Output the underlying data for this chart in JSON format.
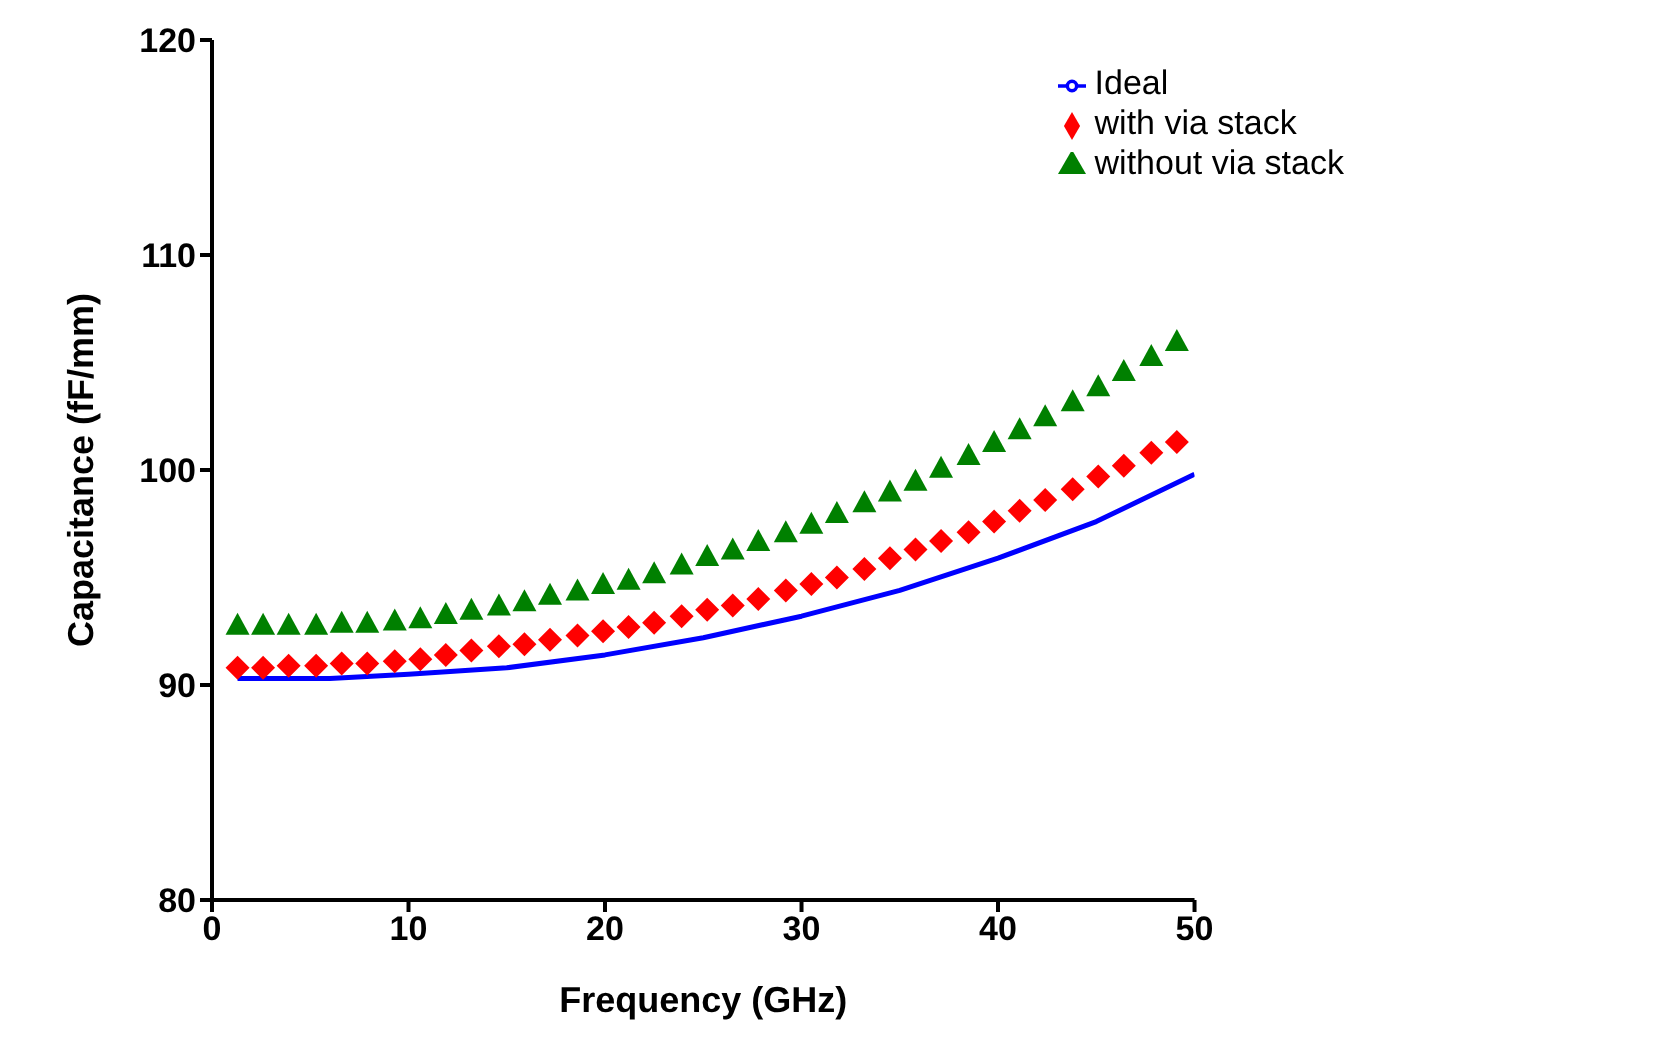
{
  "chart_data": {
    "type": "scatter",
    "xlabel": "Frequency (GHz)",
    "ylabel": "Capacitance (fF/mm)",
    "xlim": [
      0,
      50
    ],
    "xticks": [
      0,
      10,
      20,
      30,
      40,
      50
    ],
    "ylim": [
      80,
      120
    ],
    "yticks": [
      80,
      90,
      100,
      110,
      120
    ],
    "grid": false,
    "legend": "top right",
    "x": [
      1.3,
      2.6,
      3.9,
      5.3,
      6.6,
      7.9,
      9.3,
      10.6,
      11.9,
      13.2,
      14.6,
      15.9,
      17.2,
      18.6,
      19.9,
      21.2,
      22.5,
      23.9,
      25.2,
      26.5,
      27.8,
      29.2,
      30.5,
      31.8,
      33.2,
      34.5,
      35.8,
      37.1,
      38.5,
      39.8,
      41.1,
      42.4,
      43.8,
      45.1,
      46.4,
      47.8,
      49.1
    ],
    "series": [
      {
        "name": "with via stack",
        "color": "#ff0000",
        "marker": "diamond",
        "values": [
          90.8,
          90.8,
          90.9,
          90.9,
          91.0,
          91.0,
          91.1,
          91.2,
          91.4,
          91.6,
          91.8,
          91.9,
          92.1,
          92.3,
          92.5,
          92.7,
          92.9,
          93.2,
          93.5,
          93.7,
          94.0,
          94.4,
          94.7,
          95.0,
          95.4,
          95.9,
          96.3,
          96.7,
          97.1,
          97.6,
          98.1,
          98.6,
          99.1,
          99.7,
          100.2,
          100.8,
          101.3
        ]
      },
      {
        "name": "without via stack",
        "color": "#008000",
        "marker": "triangle",
        "values": [
          92.8,
          92.8,
          92.8,
          92.8,
          92.9,
          92.9,
          93.0,
          93.1,
          93.3,
          93.5,
          93.7,
          93.9,
          94.2,
          94.4,
          94.7,
          94.9,
          95.2,
          95.6,
          96.0,
          96.3,
          96.7,
          97.1,
          97.5,
          98.0,
          98.5,
          99.0,
          99.5,
          100.1,
          100.7,
          101.3,
          101.9,
          102.5,
          103.2,
          103.9,
          104.6,
          105.3,
          106.0
        ]
      },
      {
        "name": "Ideal",
        "type": "line",
        "color": "#0000ff",
        "marker": "none",
        "line_style": "solid",
        "x": [
          1.3,
          6,
          10,
          15,
          20,
          25,
          30,
          35,
          40,
          45,
          50
        ],
        "values": [
          90.3,
          90.3,
          90.5,
          90.8,
          91.4,
          92.2,
          93.2,
          94.4,
          95.9,
          97.6,
          99.8
        ]
      }
    ]
  }
}
